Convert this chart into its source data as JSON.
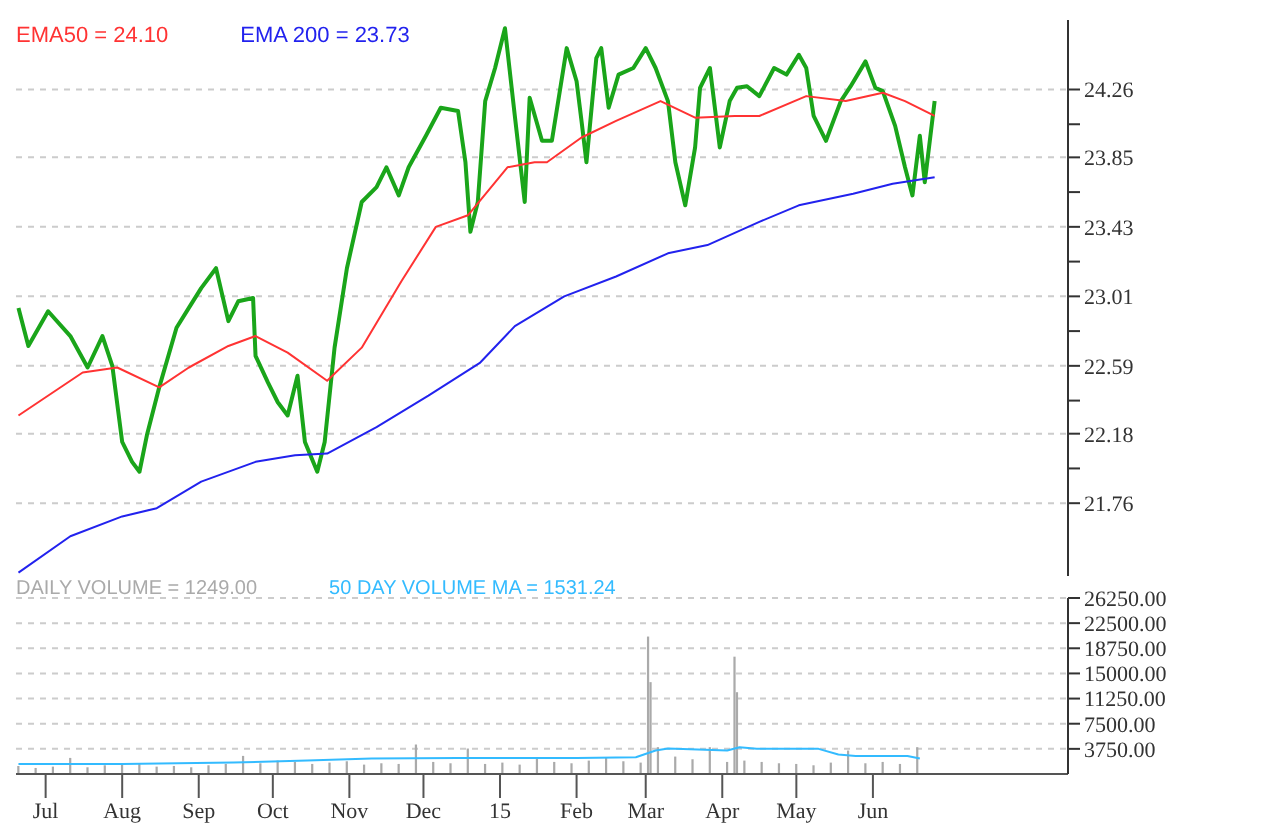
{
  "chart_data": [
    {
      "type": "line",
      "xlim": [
        "2014-06-19",
        "2015-08-19"
      ],
      "ylim": [
        21.32,
        24.68
      ],
      "yticks": [
        21.76,
        {
          "value": 21.97,
          "label": null
        },
        22.18,
        {
          "value": 22.38,
          "label": null
        },
        22.59,
        {
          "value": 22.8,
          "label": null
        },
        23.01,
        {
          "value": 23.22,
          "label": null
        },
        23.43,
        {
          "value": 23.64,
          "label": null
        },
        23.85,
        {
          "value": 24.05,
          "label": null
        },
        24.26
      ],
      "tick_labels": "y",
      "grid": "y",
      "legend": "top left",
      "marker": "none",
      "series": [
        {
          "color": "#1aa51a",
          "x": [
            "2014-06-20",
            "2014-06-24",
            "2014-07-02",
            "2014-07-11",
            "2014-07-18",
            "2014-07-24",
            "2014-07-28",
            "2014-08-01",
            "2014-08-05",
            "2014-08-08",
            "2014-08-11",
            "2014-08-16",
            "2014-08-23",
            "2014-08-28",
            "2014-09-02",
            "2014-09-08",
            "2014-09-13",
            "2014-09-17",
            "2014-09-23",
            "2014-09-24",
            "2014-09-29",
            "2014-10-03",
            "2014-10-07",
            "2014-10-11",
            "2014-10-14",
            "2014-10-19",
            "2014-10-22",
            "2014-10-26",
            "2014-10-31",
            "2014-11-06",
            "2014-11-12",
            "2014-11-16",
            "2014-11-21",
            "2014-11-25",
            "2014-12-02",
            "2014-12-08",
            "2014-12-15",
            "2014-12-18",
            "2014-12-20",
            "2014-12-23",
            "2014-12-26",
            "2014-12-30",
            "2015-01-03",
            "2015-01-07",
            "2015-01-11",
            "2015-01-13",
            "2015-01-18",
            "2015-01-22",
            "2015-01-28",
            "2015-02-01",
            "2015-02-03",
            "2015-02-05",
            "2015-02-09",
            "2015-02-11",
            "2015-02-14",
            "2015-02-18",
            "2015-02-24",
            "2015-03-01",
            "2015-03-05",
            "2015-03-10",
            "2015-03-13",
            "2015-03-17",
            "2015-03-21",
            "2015-03-23",
            "2015-03-27",
            "2015-03-31",
            "2015-04-04",
            "2015-04-07",
            "2015-04-11",
            "2015-04-16",
            "2015-04-22",
            "2015-04-27",
            "2015-05-02",
            "2015-05-05",
            "2015-05-08",
            "2015-05-13",
            "2015-05-19",
            "2015-05-23",
            "2015-05-29",
            "2015-06-02",
            "2015-06-05",
            "2015-06-10",
            "2015-06-14",
            "2015-06-17",
            "2015-06-20",
            "2015-06-22",
            "2015-06-26"
          ],
          "values": [
            22.94,
            22.71,
            22.92,
            22.77,
            22.58,
            22.77,
            22.59,
            22.13,
            22.01,
            21.95,
            22.17,
            22.46,
            22.82,
            22.94,
            23.06,
            23.18,
            22.86,
            22.98,
            23.0,
            22.65,
            22.49,
            22.37,
            22.29,
            22.53,
            22.13,
            21.95,
            22.13,
            22.7,
            23.18,
            23.58,
            23.67,
            23.79,
            23.62,
            23.79,
            23.98,
            24.15,
            24.13,
            23.82,
            23.4,
            23.58,
            24.19,
            24.39,
            24.63,
            24.1,
            23.58,
            24.21,
            23.95,
            23.95,
            24.51,
            24.31,
            24.07,
            23.82,
            24.45,
            24.51,
            24.15,
            24.35,
            24.39,
            24.51,
            24.39,
            24.19,
            23.82,
            23.56,
            23.91,
            24.27,
            24.39,
            23.91,
            24.19,
            24.27,
            24.28,
            24.22,
            24.39,
            24.35,
            24.47,
            24.39,
            24.1,
            23.95,
            24.19,
            24.28,
            24.43,
            24.27,
            24.25,
            24.04,
            23.79,
            23.62,
            23.98,
            23.7,
            24.19
          ]
        },
        {
          "name": "EMA50 = 24.10",
          "color": "#ff3333",
          "x": [
            "2014-06-20",
            "2014-07-16",
            "2014-07-30",
            "2014-08-16",
            "2014-08-28",
            "2014-09-13",
            "2014-09-24",
            "2014-10-07",
            "2014-10-23",
            "2014-11-06",
            "2014-11-22",
            "2014-12-06",
            "2014-12-19",
            "2015-01-04",
            "2015-01-15",
            "2015-01-20",
            "2015-02-03",
            "2015-02-17",
            "2015-03-07",
            "2015-03-21",
            "2015-04-06",
            "2015-04-16",
            "2015-05-05",
            "2015-05-21",
            "2015-06-05",
            "2015-06-14",
            "2015-06-26"
          ],
          "values": [
            22.29,
            22.55,
            22.58,
            22.46,
            22.58,
            22.71,
            22.77,
            22.67,
            22.5,
            22.7,
            23.1,
            23.43,
            23.5,
            23.79,
            23.82,
            23.82,
            23.97,
            24.07,
            24.19,
            24.09,
            24.1,
            24.1,
            24.22,
            24.19,
            24.24,
            24.19,
            24.1
          ]
        },
        {
          "name": "EMA 200 = 23.73",
          "color": "#2222ee",
          "x": [
            "2014-06-20",
            "2014-07-11",
            "2014-08-01",
            "2014-08-15",
            "2014-09-02",
            "2014-09-24",
            "2014-10-10",
            "2014-10-23",
            "2014-11-12",
            "2014-12-03",
            "2014-12-24",
            "2015-01-07",
            "2015-01-27",
            "2015-02-17",
            "2015-03-10",
            "2015-03-26",
            "2015-04-16",
            "2015-05-02",
            "2015-05-24",
            "2015-06-09",
            "2015-06-26"
          ],
          "values": [
            21.34,
            21.56,
            21.68,
            21.73,
            21.89,
            22.01,
            22.05,
            22.06,
            22.22,
            22.41,
            22.61,
            22.83,
            23.01,
            23.13,
            23.27,
            23.32,
            23.46,
            23.56,
            23.63,
            23.69,
            23.73
          ]
        }
      ]
    },
    {
      "type": "bar",
      "xlim": [
        "2014-06-19",
        "2015-08-19"
      ],
      "ylim": [
        0,
        26250
      ],
      "yticks": [
        {
          "value": 3750,
          "label": "3750.00"
        },
        {
          "value": 7500,
          "label": "7500.00"
        },
        {
          "value": 11250,
          "label": "11250.00"
        },
        {
          "value": 15000,
          "label": "15000.00"
        },
        {
          "value": 18750,
          "label": "18750.00"
        },
        {
          "value": 22500,
          "label": "22500.00"
        },
        {
          "value": 26250,
          "label": "26250.00"
        }
      ],
      "xticks": [
        {
          "value": "2014-07-01",
          "label": "Jul"
        },
        {
          "value": "2014-08-01",
          "label": "Aug"
        },
        {
          "value": "2014-09-01",
          "label": "Sep"
        },
        {
          "value": "2014-10-01",
          "label": "Oct"
        },
        {
          "value": "2014-11-01",
          "label": "Nov"
        },
        {
          "value": "2014-12-01",
          "label": "Dec"
        },
        {
          "value": "2015-01-01",
          "label": "15"
        },
        {
          "value": "2015-02-01",
          "label": "Feb"
        },
        {
          "value": "2015-03-01",
          "label": "Mar"
        },
        {
          "value": "2015-04-01",
          "label": "Apr"
        },
        {
          "value": "2015-05-01",
          "label": "May"
        },
        {
          "value": "2015-06-01",
          "label": "Jun"
        }
      ],
      "grid": "y",
      "legend": "top left",
      "marker": "none",
      "series": [
        {
          "name": "DAILY VOLUME = 1249.00",
          "color": "#aaaaaa",
          "x": [
            "2014-06-20",
            "2014-06-27",
            "2014-07-04",
            "2014-07-11",
            "2014-07-18",
            "2014-07-25",
            "2014-08-01",
            "2014-08-08",
            "2014-08-15",
            "2014-08-22",
            "2014-08-29",
            "2014-09-05",
            "2014-09-12",
            "2014-09-19",
            "2014-09-26",
            "2014-10-03",
            "2014-10-10",
            "2014-10-17",
            "2014-10-24",
            "2014-10-31",
            "2014-11-07",
            "2014-11-14",
            "2014-11-21",
            "2014-11-28",
            "2014-12-05",
            "2014-12-12",
            "2014-12-19",
            "2014-12-26",
            "2015-01-02",
            "2015-01-09",
            "2015-01-16",
            "2015-01-23",
            "2015-01-30",
            "2015-02-06",
            "2015-02-13",
            "2015-02-20",
            "2015-02-27",
            "2015-03-02",
            "2015-03-03",
            "2015-03-06",
            "2015-03-13",
            "2015-03-20",
            "2015-03-27",
            "2015-04-03",
            "2015-04-06",
            "2015-04-07",
            "2015-04-10",
            "2015-04-17",
            "2015-04-24",
            "2015-05-01",
            "2015-05-08",
            "2015-05-15",
            "2015-05-22",
            "2015-05-29",
            "2015-06-05",
            "2015-06-12",
            "2015-06-19"
          ],
          "values": [
            1200,
            900,
            1100,
            2400,
            1000,
            1300,
            1400,
            1600,
            1100,
            1200,
            1000,
            1300,
            1500,
            2700,
            1600,
            2000,
            1800,
            1500,
            1700,
            1900,
            1400,
            1600,
            1500,
            4400,
            1800,
            1600,
            3800,
            1500,
            1700,
            1400,
            2500,
            1800,
            1600,
            2000,
            2400,
            1900,
            1700,
            20500,
            13700,
            4000,
            2600,
            2200,
            4000,
            1800,
            17500,
            12200,
            2000,
            1800,
            1600,
            1500,
            1300,
            1700,
            3500,
            1600,
            1800,
            1500,
            4000
          ]
        },
        {
          "name": "50 DAY VOLUME MA = 1531.24",
          "type": "line",
          "color": "#33bbff",
          "x": [
            "2014-06-20",
            "2014-08-01",
            "2014-09-15",
            "2014-10-15",
            "2014-11-10",
            "2014-12-15",
            "2015-02-01",
            "2015-02-25",
            "2015-03-05",
            "2015-03-10",
            "2015-04-03",
            "2015-04-08",
            "2015-04-15",
            "2015-05-10",
            "2015-05-18",
            "2015-05-25",
            "2015-06-15",
            "2015-06-20"
          ],
          "values": [
            1500,
            1500,
            1700,
            2000,
            2300,
            2400,
            2400,
            2500,
            3500,
            3800,
            3500,
            4000,
            3750,
            3750,
            2900,
            2700,
            2700,
            2300
          ]
        }
      ]
    }
  ]
}
